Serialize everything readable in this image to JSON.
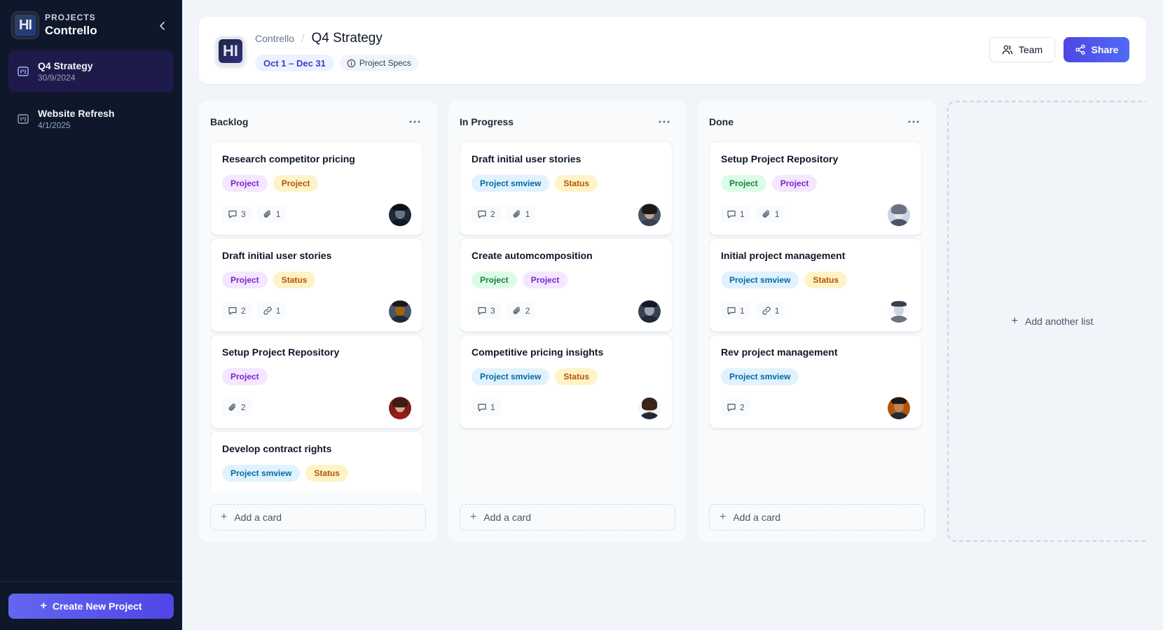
{
  "sidebar": {
    "eyebrow": "PROJECTS",
    "workspace": "Contrello",
    "logo_letters": "HI",
    "projects": [
      {
        "name": "Q4 Strategy",
        "date": "30/9/2024"
      },
      {
        "name": "Website Refresh",
        "date": "4/1/2025"
      }
    ],
    "create_label": "Create New Project"
  },
  "header": {
    "breadcrumb_parent": "Contrello",
    "breadcrumb_sep": "/",
    "title": "Q4 Strategy",
    "date_range": "Oct 1 – Dec 31",
    "specs_label": "Project Specs",
    "team_label": "Team",
    "share_label": "Share"
  },
  "board": {
    "add_card_label": "Add a card",
    "add_list_label": "Add another list",
    "columns": [
      {
        "title": "Backlog",
        "cards": [
          {
            "title": "Research competitor pricing",
            "tags": [
              {
                "label": "Project",
                "color": "purple"
              },
              {
                "label": "Project",
                "color": "amber"
              }
            ],
            "comments": "3",
            "attachments": "1"
          },
          {
            "title": "Draft initial user stories",
            "tags": [
              {
                "label": "Project",
                "color": "purple"
              },
              {
                "label": "Status",
                "color": "amber"
              }
            ],
            "comments": "2",
            "links": "1"
          },
          {
            "title": "Setup Project Repository",
            "tags": [
              {
                "label": "Project",
                "color": "purple"
              }
            ],
            "attachments": "2"
          },
          {
            "title": "Develop contract rights",
            "tags": [
              {
                "label": "Project smview",
                "color": "sky"
              },
              {
                "label": "Status",
                "color": "amber"
              }
            ]
          }
        ]
      },
      {
        "title": "In Progress",
        "cards": [
          {
            "title": "Draft initial user stories",
            "tags": [
              {
                "label": "Project smview",
                "color": "sky"
              },
              {
                "label": "Status",
                "color": "amber"
              }
            ],
            "comments": "2",
            "attachments": "1"
          },
          {
            "title": "Create automcomposition",
            "tags": [
              {
                "label": "Project",
                "color": "green"
              },
              {
                "label": "Project",
                "color": "purple"
              }
            ],
            "comments": "3",
            "attachments": "2"
          },
          {
            "title": "Competitive pricing insights",
            "tags": [
              {
                "label": "Project smview",
                "color": "sky"
              },
              {
                "label": "Status",
                "color": "amber"
              }
            ],
            "comments": "1"
          }
        ]
      },
      {
        "title": "Done",
        "cards": [
          {
            "title": "Setup Project Repository",
            "tags": [
              {
                "label": "Project",
                "color": "green"
              },
              {
                "label": "Project",
                "color": "purple"
              }
            ],
            "comments": "1",
            "attachments": "1"
          },
          {
            "title": "Initial project management",
            "tags": [
              {
                "label": "Project smview",
                "color": "sky"
              },
              {
                "label": "Status",
                "color": "amber"
              }
            ],
            "comments": "1",
            "links": "1"
          },
          {
            "title": "Rev project management",
            "tags": [
              {
                "label": "Project smview",
                "color": "sky"
              }
            ],
            "comments": "2"
          }
        ]
      }
    ]
  }
}
